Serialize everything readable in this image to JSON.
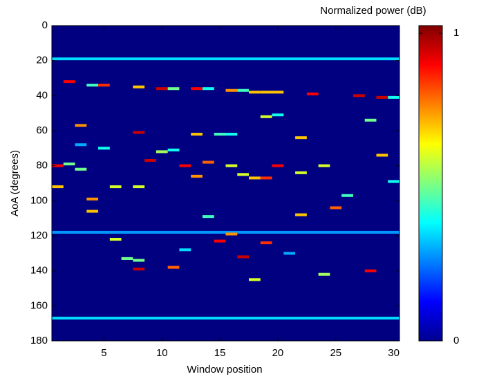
{
  "chart_data": {
    "type": "heatmap",
    "colorbar_label": "Normalized power (dB)",
    "xlabel": "Window position",
    "ylabel": "AoA (degrees)",
    "xlim": [
      0.5,
      30.5
    ],
    "xticks": [
      5,
      10,
      15,
      20,
      25,
      30
    ],
    "ylim": [
      0,
      180
    ],
    "yticks": [
      0,
      20,
      40,
      60,
      80,
      100,
      120,
      140,
      160,
      180
    ],
    "y_reversed": true,
    "zlim": [
      0,
      1.025
    ],
    "zticks": [
      0,
      1
    ],
    "rows": [
      {
        "y": 19,
        "value": 0.35
      },
      {
        "y": 118,
        "value": 0.28
      },
      {
        "y": 167,
        "value": 0.35
      }
    ],
    "cells": [
      {
        "x": 2,
        "y": 32,
        "value": 0.9
      },
      {
        "x": 4,
        "y": 34,
        "value": 0.45
      },
      {
        "x": 5,
        "y": 34,
        "value": 0.85
      },
      {
        "x": 8,
        "y": 35,
        "value": 0.7
      },
      {
        "x": 10,
        "y": 36,
        "value": 0.95
      },
      {
        "x": 11,
        "y": 36,
        "value": 0.5
      },
      {
        "x": 13,
        "y": 36,
        "value": 0.9
      },
      {
        "x": 14,
        "y": 36,
        "value": 0.4
      },
      {
        "x": 16,
        "y": 37,
        "value": 0.75
      },
      {
        "x": 17,
        "y": 37,
        "value": 0.45
      },
      {
        "x": 18,
        "y": 38,
        "value": 0.7
      },
      {
        "x": 19,
        "y": 38,
        "value": 0.7
      },
      {
        "x": 20,
        "y": 38,
        "value": 0.7
      },
      {
        "x": 3,
        "y": 57,
        "value": 0.75
      },
      {
        "x": 8,
        "y": 61,
        "value": 0.95
      },
      {
        "x": 13,
        "y": 62,
        "value": 0.7
      },
      {
        "x": 15,
        "y": 62,
        "value": 0.45
      },
      {
        "x": 16,
        "y": 62,
        "value": 0.4
      },
      {
        "x": 22,
        "y": 64,
        "value": 0.7
      },
      {
        "x": 20,
        "y": 51,
        "value": 0.4
      },
      {
        "x": 19,
        "y": 52,
        "value": 0.6
      },
      {
        "x": 1,
        "y": 80,
        "value": 0.9
      },
      {
        "x": 2,
        "y": 79,
        "value": 0.5
      },
      {
        "x": 3,
        "y": 82,
        "value": 0.5
      },
      {
        "x": 9,
        "y": 77,
        "value": 0.95
      },
      {
        "x": 12,
        "y": 80,
        "value": 0.9
      },
      {
        "x": 13,
        "y": 86,
        "value": 0.75
      },
      {
        "x": 14,
        "y": 78,
        "value": 0.8
      },
      {
        "x": 16,
        "y": 80,
        "value": 0.6
      },
      {
        "x": 17,
        "y": 85,
        "value": 0.6
      },
      {
        "x": 18,
        "y": 87,
        "value": 0.7
      },
      {
        "x": 19,
        "y": 87,
        "value": 0.85
      },
      {
        "x": 20,
        "y": 80,
        "value": 0.9
      },
      {
        "x": 22,
        "y": 84,
        "value": 0.6
      },
      {
        "x": 24,
        "y": 80,
        "value": 0.6
      },
      {
        "x": 29,
        "y": 74,
        "value": 0.7
      },
      {
        "x": 28,
        "y": 54,
        "value": 0.5
      },
      {
        "x": 1,
        "y": 92,
        "value": 0.7
      },
      {
        "x": 4,
        "y": 99,
        "value": 0.75
      },
      {
        "x": 6,
        "y": 92,
        "value": 0.6
      },
      {
        "x": 8,
        "y": 92,
        "value": 0.6
      },
      {
        "x": 22,
        "y": 108,
        "value": 0.7
      },
      {
        "x": 25,
        "y": 104,
        "value": 0.8
      },
      {
        "x": 16,
        "y": 119,
        "value": 0.75
      },
      {
        "x": 15,
        "y": 123,
        "value": 0.9
      },
      {
        "x": 19,
        "y": 124,
        "value": 0.85
      },
      {
        "x": 6,
        "y": 122,
        "value": 0.6
      },
      {
        "x": 17,
        "y": 132,
        "value": 0.95
      },
      {
        "x": 8,
        "y": 139,
        "value": 0.95
      },
      {
        "x": 11,
        "y": 138,
        "value": 0.8
      },
      {
        "x": 18,
        "y": 145,
        "value": 0.6
      },
      {
        "x": 4,
        "y": 106,
        "value": 0.7
      },
      {
        "x": 10,
        "y": 72,
        "value": 0.55
      },
      {
        "x": 3,
        "y": 68,
        "value": 0.3
      },
      {
        "x": 5,
        "y": 70,
        "value": 0.4
      },
      {
        "x": 30,
        "y": 41,
        "value": 0.4
      },
      {
        "x": 29,
        "y": 41,
        "value": 0.95
      },
      {
        "x": 27,
        "y": 40,
        "value": 0.95
      },
      {
        "x": 23,
        "y": 39,
        "value": 0.9
      },
      {
        "x": 28,
        "y": 140,
        "value": 0.9
      },
      {
        "x": 7,
        "y": 133,
        "value": 0.5
      },
      {
        "x": 8,
        "y": 134,
        "value": 0.5
      },
      {
        "x": 24,
        "y": 142,
        "value": 0.55
      },
      {
        "x": 26,
        "y": 97,
        "value": 0.45
      },
      {
        "x": 30,
        "y": 89,
        "value": 0.4
      },
      {
        "x": 12,
        "y": 128,
        "value": 0.35
      },
      {
        "x": 21,
        "y": 130,
        "value": 0.3
      },
      {
        "x": 14,
        "y": 109,
        "value": 0.45
      },
      {
        "x": 11,
        "y": 71,
        "value": 0.4
      }
    ]
  }
}
